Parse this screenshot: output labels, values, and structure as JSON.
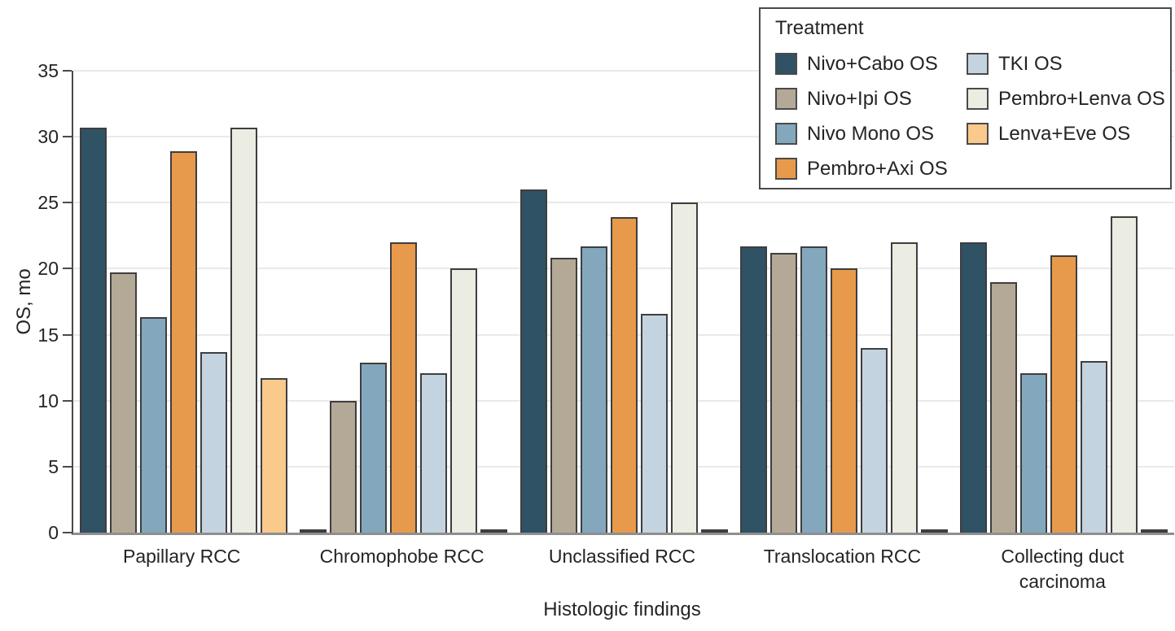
{
  "chart_data": {
    "type": "bar",
    "title": "",
    "xlabel": "Histologic findings",
    "ylabel": "OS, mo",
    "legend_title": "Treatment",
    "legend_position": "top-right",
    "grid": true,
    "ylim": [
      0,
      35
    ],
    "yticks": [
      0,
      5,
      10,
      15,
      20,
      25,
      30,
      35
    ],
    "categories": [
      "Papillary RCC",
      "Chromophobe RCC",
      "Unclassified RCC",
      "Translocation RCC",
      "Collecting duct carcinoma"
    ],
    "series": [
      {
        "name": "Nivo+Cabo OS",
        "color": "#2f5265",
        "values": [
          30.7,
          0.1,
          26.0,
          21.7,
          22.0
        ]
      },
      {
        "name": "Nivo+Ipi OS",
        "color": "#b4a997",
        "values": [
          19.7,
          10.0,
          20.8,
          21.2,
          19.0
        ]
      },
      {
        "name": "Nivo Mono OS",
        "color": "#83a8bd",
        "values": [
          16.3,
          12.9,
          21.7,
          21.7,
          12.1
        ]
      },
      {
        "name": "Pembro+Axi OS",
        "color": "#e79a4b",
        "values": [
          28.9,
          22.0,
          23.9,
          20.0,
          21.0
        ]
      },
      {
        "name": "TKI OS",
        "color": "#c3d4e0",
        "values": [
          13.7,
          12.1,
          16.6,
          14.0,
          13.0
        ]
      },
      {
        "name": "Pembro+Lenva OS",
        "color": "#ebece2",
        "values": [
          30.7,
          20.0,
          25.0,
          22.0,
          24.0
        ]
      },
      {
        "name": "Lenva+Eve OS",
        "color": "#fac98c",
        "values": [
          11.7,
          0.1,
          0.1,
          0.1,
          0.1
        ]
      }
    ],
    "legend_columns": [
      [
        0,
        1,
        2,
        3
      ],
      [
        4,
        5,
        6
      ]
    ]
  },
  "style_colors": {
    "bar_outline": "#3e3e3e",
    "gridline": "#e9e9e9",
    "axis_spine": "#4a4a4a",
    "baseline": "#8e8e8e",
    "text": "#242424"
  }
}
